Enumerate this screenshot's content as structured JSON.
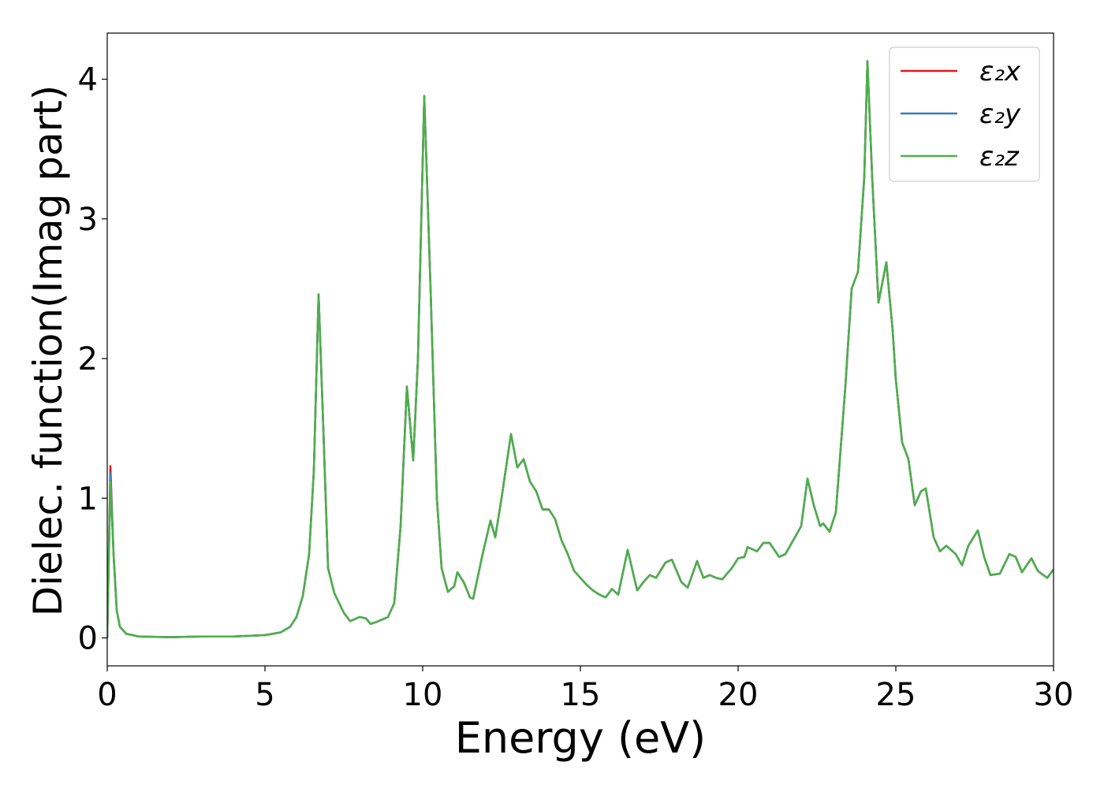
{
  "chart_data": {
    "type": "line",
    "xlabel": "Energy (eV)",
    "ylabel": "Dielec. function(Imag part)",
    "xlim": [
      0,
      30
    ],
    "xticks": [
      0,
      5,
      10,
      15,
      20,
      25,
      30
    ],
    "ylim": [
      -0.2,
      4.33
    ],
    "yticks": [
      0,
      1,
      2,
      3,
      4
    ],
    "legend": "upper right",
    "x": [
      0,
      0.1,
      0.2,
      0.3,
      0.4,
      0.6,
      1,
      2,
      3,
      4,
      5,
      5.5,
      5.8,
      6.0,
      6.2,
      6.4,
      6.55,
      6.7,
      6.85,
      7.0,
      7.2,
      7.5,
      7.7,
      8.0,
      8.2,
      8.35,
      8.6,
      8.9,
      9.1,
      9.3,
      9.5,
      9.7,
      9.85,
      10.05,
      10.25,
      10.45,
      10.6,
      10.8,
      11.0,
      11.1,
      11.3,
      11.5,
      11.6,
      11.9,
      12.15,
      12.3,
      12.5,
      12.8,
      13.0,
      13.2,
      13.4,
      13.6,
      13.8,
      14.0,
      14.2,
      14.4,
      14.6,
      14.8,
      15.0,
      15.2,
      15.4,
      15.6,
      15.8,
      16.0,
      16.2,
      16.5,
      16.8,
      17.0,
      17.2,
      17.4,
      17.7,
      17.9,
      18.2,
      18.4,
      18.7,
      18.9,
      19.1,
      19.3,
      19.5,
      19.8,
      20.0,
      20.2,
      20.3,
      20.6,
      20.8,
      21.0,
      21.3,
      21.5,
      21.8,
      22.0,
      22.2,
      22.4,
      22.6,
      22.7,
      22.9,
      23.1,
      23.4,
      23.6,
      23.8,
      24.0,
      24.1,
      24.25,
      24.45,
      24.7,
      24.9,
      25.0,
      25.2,
      25.4,
      25.6,
      25.8,
      25.95,
      26.2,
      26.4,
      26.6,
      26.9,
      27.1,
      27.3,
      27.6,
      27.8,
      28.0,
      28.3,
      28.6,
      28.8,
      29.0,
      29.3,
      29.5,
      29.8,
      30.0
    ],
    "series": [
      {
        "name": "ε₂x",
        "color": "#e41a1c",
        "values": [
          0,
          1.23,
          0.6,
          0.2,
          0.08,
          0.03,
          0.01,
          0.005,
          0.01,
          0.01,
          0.02,
          0.04,
          0.08,
          0.15,
          0.3,
          0.6,
          1.2,
          2.46,
          1.5,
          0.5,
          0.32,
          0.18,
          0.12,
          0.15,
          0.14,
          0.1,
          0.12,
          0.15,
          0.25,
          0.8,
          1.8,
          1.27,
          2.0,
          3.88,
          2.5,
          1.0,
          0.5,
          0.33,
          0.37,
          0.47,
          0.4,
          0.29,
          0.28,
          0.6,
          0.84,
          0.72,
          1.0,
          1.46,
          1.22,
          1.28,
          1.12,
          1.05,
          0.92,
          0.92,
          0.85,
          0.7,
          0.6,
          0.48,
          0.43,
          0.38,
          0.34,
          0.31,
          0.29,
          0.35,
          0.31,
          0.63,
          0.34,
          0.4,
          0.45,
          0.43,
          0.54,
          0.56,
          0.4,
          0.36,
          0.55,
          0.43,
          0.45,
          0.43,
          0.42,
          0.5,
          0.57,
          0.58,
          0.65,
          0.62,
          0.68,
          0.68,
          0.58,
          0.6,
          0.72,
          0.8,
          1.14,
          0.95,
          0.8,
          0.82,
          0.76,
          0.9,
          1.8,
          2.5,
          2.62,
          3.3,
          4.13,
          3.3,
          2.4,
          2.69,
          2.2,
          1.85,
          1.4,
          1.28,
          0.95,
          1.05,
          1.07,
          0.72,
          0.62,
          0.66,
          0.6,
          0.52,
          0.66,
          0.77,
          0.58,
          0.45,
          0.46,
          0.6,
          0.58,
          0.47,
          0.57,
          0.48,
          0.43,
          0.49
        ]
      },
      {
        "name": "ε₂y",
        "color": "#377eb8",
        "values": [
          0,
          1.18,
          0.6,
          0.2,
          0.08,
          0.03,
          0.01,
          0.005,
          0.01,
          0.01,
          0.02,
          0.04,
          0.08,
          0.15,
          0.3,
          0.6,
          1.2,
          2.46,
          1.5,
          0.5,
          0.32,
          0.18,
          0.12,
          0.15,
          0.14,
          0.1,
          0.12,
          0.15,
          0.25,
          0.8,
          1.8,
          1.27,
          2.0,
          3.88,
          2.5,
          1.0,
          0.5,
          0.33,
          0.37,
          0.47,
          0.4,
          0.29,
          0.28,
          0.6,
          0.84,
          0.72,
          1.0,
          1.46,
          1.22,
          1.28,
          1.12,
          1.05,
          0.92,
          0.92,
          0.85,
          0.7,
          0.6,
          0.48,
          0.43,
          0.38,
          0.34,
          0.31,
          0.29,
          0.35,
          0.31,
          0.63,
          0.34,
          0.4,
          0.45,
          0.43,
          0.54,
          0.56,
          0.4,
          0.36,
          0.55,
          0.43,
          0.45,
          0.43,
          0.42,
          0.5,
          0.57,
          0.58,
          0.65,
          0.62,
          0.68,
          0.68,
          0.58,
          0.6,
          0.72,
          0.8,
          1.14,
          0.95,
          0.8,
          0.82,
          0.76,
          0.9,
          1.8,
          2.5,
          2.62,
          3.3,
          4.13,
          3.3,
          2.4,
          2.69,
          2.2,
          1.85,
          1.4,
          1.28,
          0.95,
          1.05,
          1.07,
          0.72,
          0.62,
          0.66,
          0.6,
          0.52,
          0.66,
          0.77,
          0.58,
          0.45,
          0.46,
          0.6,
          0.58,
          0.47,
          0.57,
          0.48,
          0.43,
          0.49
        ]
      },
      {
        "name": "ε₂z",
        "color": "#4daf4a",
        "values": [
          0,
          1.12,
          0.6,
          0.2,
          0.08,
          0.03,
          0.01,
          0.005,
          0.01,
          0.01,
          0.02,
          0.04,
          0.08,
          0.15,
          0.3,
          0.6,
          1.2,
          2.46,
          1.5,
          0.5,
          0.32,
          0.18,
          0.12,
          0.15,
          0.14,
          0.1,
          0.12,
          0.15,
          0.25,
          0.8,
          1.8,
          1.27,
          2.0,
          3.88,
          2.5,
          1.0,
          0.5,
          0.33,
          0.37,
          0.47,
          0.4,
          0.29,
          0.28,
          0.6,
          0.84,
          0.72,
          1.0,
          1.46,
          1.22,
          1.28,
          1.12,
          1.05,
          0.92,
          0.92,
          0.85,
          0.7,
          0.6,
          0.48,
          0.43,
          0.38,
          0.34,
          0.31,
          0.29,
          0.35,
          0.31,
          0.63,
          0.34,
          0.4,
          0.45,
          0.43,
          0.54,
          0.56,
          0.4,
          0.36,
          0.55,
          0.43,
          0.45,
          0.43,
          0.42,
          0.5,
          0.57,
          0.58,
          0.65,
          0.62,
          0.68,
          0.68,
          0.58,
          0.6,
          0.72,
          0.8,
          1.14,
          0.95,
          0.8,
          0.82,
          0.76,
          0.9,
          1.8,
          2.5,
          2.62,
          3.3,
          4.13,
          3.3,
          2.4,
          2.69,
          2.2,
          1.85,
          1.4,
          1.28,
          0.95,
          1.05,
          1.07,
          0.72,
          0.62,
          0.66,
          0.6,
          0.52,
          0.66,
          0.77,
          0.58,
          0.45,
          0.46,
          0.6,
          0.58,
          0.47,
          0.57,
          0.48,
          0.43,
          0.49
        ]
      }
    ]
  }
}
